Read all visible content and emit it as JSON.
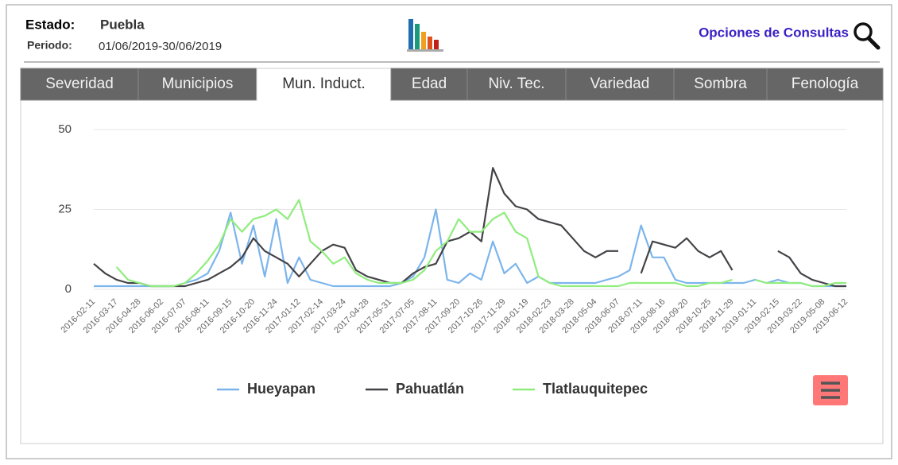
{
  "header": {
    "estado_label": "Estado:",
    "estado": "Puebla",
    "periodo_label": "Periodo:",
    "periodo": "01/06/2019-30/06/2019",
    "options": "Opciones de Consultas"
  },
  "tabs": [
    "Severidad",
    "Municipios",
    "Mun. Induct.",
    "Edad",
    "Niv. Tec.",
    "Variedad",
    "Sombra",
    "Fenología"
  ],
  "active_tab": 2,
  "chart_data": {
    "type": "line",
    "categories": [
      "2016-02-11",
      null,
      "2016-03-17",
      null,
      "2016-04-28",
      null,
      "2016-06-02",
      null,
      "2016-07-07",
      null,
      "2016-08-11",
      null,
      "2016-09-15",
      null,
      "2016-10-20",
      null,
      "2016-11-24",
      null,
      "2017-01-12",
      null,
      "2017-02-14",
      null,
      "2017-03-24",
      null,
      "2017-04-28",
      null,
      "2017-05-31",
      null,
      "2017-07-05",
      null,
      "2017-08-11",
      null,
      "2017-09-20",
      null,
      "2017-10-26",
      null,
      "2017-11-29",
      null,
      "2018-01-19",
      null,
      "2018-02-23",
      null,
      "2018-03-28",
      null,
      "2018-05-04",
      null,
      "2018-06-07",
      null,
      "2018-07-11",
      null,
      "2018-08-16",
      null,
      "2018-09-20",
      null,
      "2018-10-25",
      null,
      "2018-11-29",
      null,
      "2019-01-11",
      null,
      "2019-02-15",
      null,
      "2019-03-22",
      null,
      "2019-05-08",
      null,
      "2019-06-12"
    ],
    "series": [
      {
        "name": "Hueyapan",
        "color": "#7cb5ec",
        "values": [
          1,
          1,
          1,
          1,
          1,
          1,
          1,
          1,
          2,
          3,
          5,
          12,
          24,
          8,
          20,
          4,
          22,
          2,
          10,
          3,
          2,
          1,
          1,
          1,
          1,
          1,
          1,
          2,
          4,
          10,
          25,
          3,
          2,
          5,
          3,
          15,
          5,
          8,
          2,
          4,
          2,
          2,
          2,
          2,
          2,
          3,
          4,
          6,
          20,
          10,
          10,
          3,
          2,
          2,
          2,
          2,
          2,
          2,
          3,
          2,
          3,
          2,
          2,
          1,
          1,
          1,
          1
        ]
      },
      {
        "name": "Pahuatlán",
        "color": "#434348",
        "values": [
          8,
          5,
          3,
          2,
          2,
          1,
          1,
          1,
          1,
          2,
          3,
          5,
          7,
          10,
          16,
          12,
          10,
          8,
          4,
          8,
          12,
          14,
          13,
          6,
          4,
          3,
          2,
          2,
          5,
          7,
          8,
          15,
          16,
          18,
          15,
          38,
          30,
          26,
          25,
          22,
          21,
          20,
          16,
          12,
          10,
          12,
          12,
          null,
          5,
          15,
          14,
          13,
          16,
          12,
          10,
          12,
          6,
          null,
          null,
          null,
          12,
          10,
          5,
          3,
          2,
          1,
          1
        ]
      },
      {
        "name": "Tlatlauquitepec",
        "color": "#90ed7d",
        "values": [
          null,
          null,
          7,
          3,
          2,
          1,
          1,
          1,
          2,
          5,
          9,
          14,
          22,
          18,
          22,
          23,
          25,
          22,
          28,
          15,
          12,
          8,
          10,
          5,
          3,
          2,
          2,
          2,
          3,
          6,
          12,
          15,
          22,
          18,
          18,
          22,
          24,
          18,
          16,
          4,
          2,
          1,
          1,
          1,
          1,
          1,
          1,
          2,
          2,
          2,
          2,
          2,
          1,
          1,
          2,
          2,
          3,
          null,
          3,
          2,
          2,
          2,
          2,
          1,
          1,
          2,
          2
        ]
      }
    ],
    "ylim": [
      0,
      50
    ],
    "yticks": [
      0,
      25,
      50
    ],
    "grid": true
  }
}
